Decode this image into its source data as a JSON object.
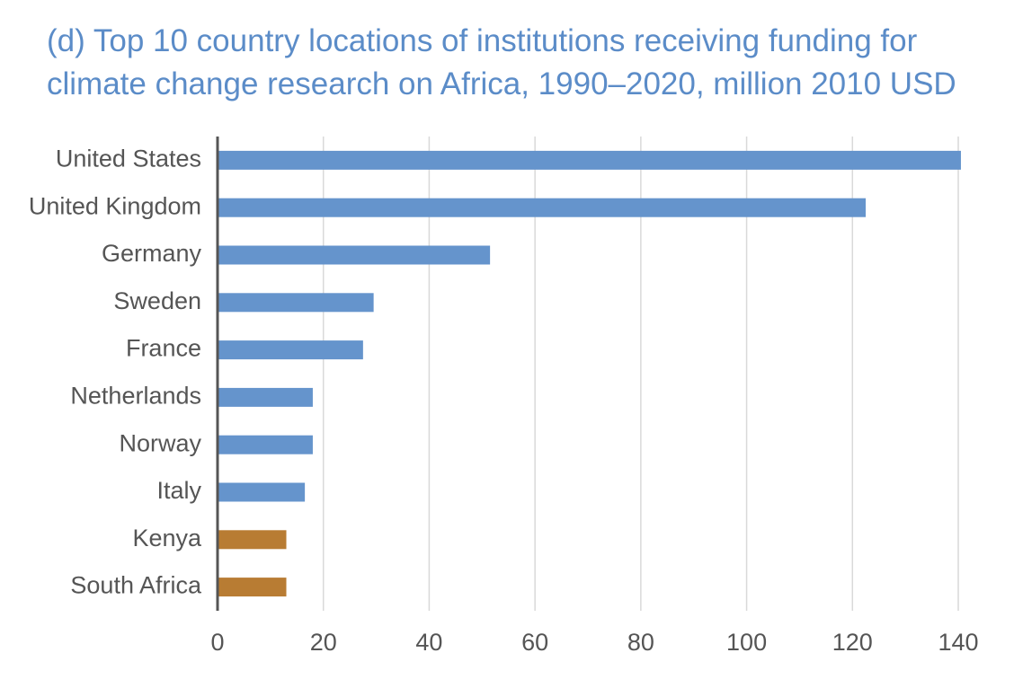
{
  "chart_data": {
    "type": "bar",
    "orientation": "horizontal",
    "title_lines": [
      "(d) Top 10 country locations of institutions receiving funding for",
      "climate change research on Africa, 1990–2020, million 2010 USD"
    ],
    "categories": [
      "United States",
      "United Kingdom",
      "Germany",
      "Sweden",
      "France",
      "Netherlands",
      "Norway",
      "Italy",
      "Kenya",
      "South Africa"
    ],
    "values": [
      140.5,
      122.5,
      51.5,
      29.5,
      27.5,
      18,
      18,
      16.5,
      13,
      13
    ],
    "bar_colors": [
      "#6594cc",
      "#6594cc",
      "#6594cc",
      "#6594cc",
      "#6594cc",
      "#6594cc",
      "#6594cc",
      "#6594cc",
      "#b87c33",
      "#b87c33"
    ],
    "xlim": [
      0,
      140
    ],
    "xticks": [
      0,
      20,
      40,
      60,
      80,
      100,
      120,
      140
    ],
    "grid": "vertical",
    "colors": {
      "title": "#5b8cc8",
      "axis": "#555555",
      "grid": "#d9d9d9",
      "text": "#555555"
    }
  }
}
